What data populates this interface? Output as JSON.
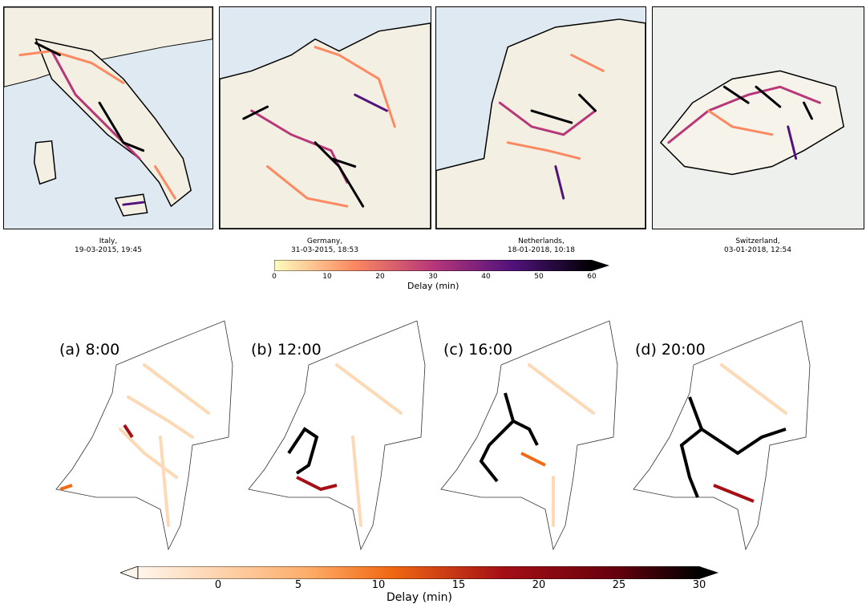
{
  "top_panels": [
    {
      "id": "italy",
      "caption_line1": "Italy,",
      "caption_line2": "19-03-2015, 19:45"
    },
    {
      "id": "germany",
      "caption_line1": "Germany,",
      "caption_line2": "31-03-2015, 18:53"
    },
    {
      "id": "netherlands",
      "caption_line1": "Netherlands,",
      "caption_line2": "18-01-2018, 10:18"
    },
    {
      "id": "switzerland",
      "caption_line1": "Switzerland,",
      "caption_line2": "03-01-2018, 12:54"
    }
  ],
  "colorbar_top": {
    "label": "Delay (min)",
    "ticks": [
      "0",
      "10",
      "20",
      "30",
      "40",
      "50",
      "60"
    ],
    "min": 0,
    "max": 60,
    "colors": [
      "#fcfdbf",
      "#fc8961",
      "#b73779",
      "#51127c",
      "#000004"
    ]
  },
  "bottom_panels": [
    {
      "id": "a",
      "title": "(a) 8:00"
    },
    {
      "id": "b",
      "title": "(b) 12:00"
    },
    {
      "id": "c",
      "title": "(c) 16:00"
    },
    {
      "id": "d",
      "title": "(d) 20:00"
    }
  ],
  "colorbar_bottom": {
    "label": "Delay (min)",
    "ticks": [
      "0",
      "5",
      "10",
      "15",
      "20",
      "25",
      "30"
    ],
    "min": -5,
    "max": 30,
    "colors": [
      "#fff5eb",
      "#fdae6b",
      "#f16913",
      "#a50f15",
      "#67000d",
      "#000000"
    ]
  }
}
